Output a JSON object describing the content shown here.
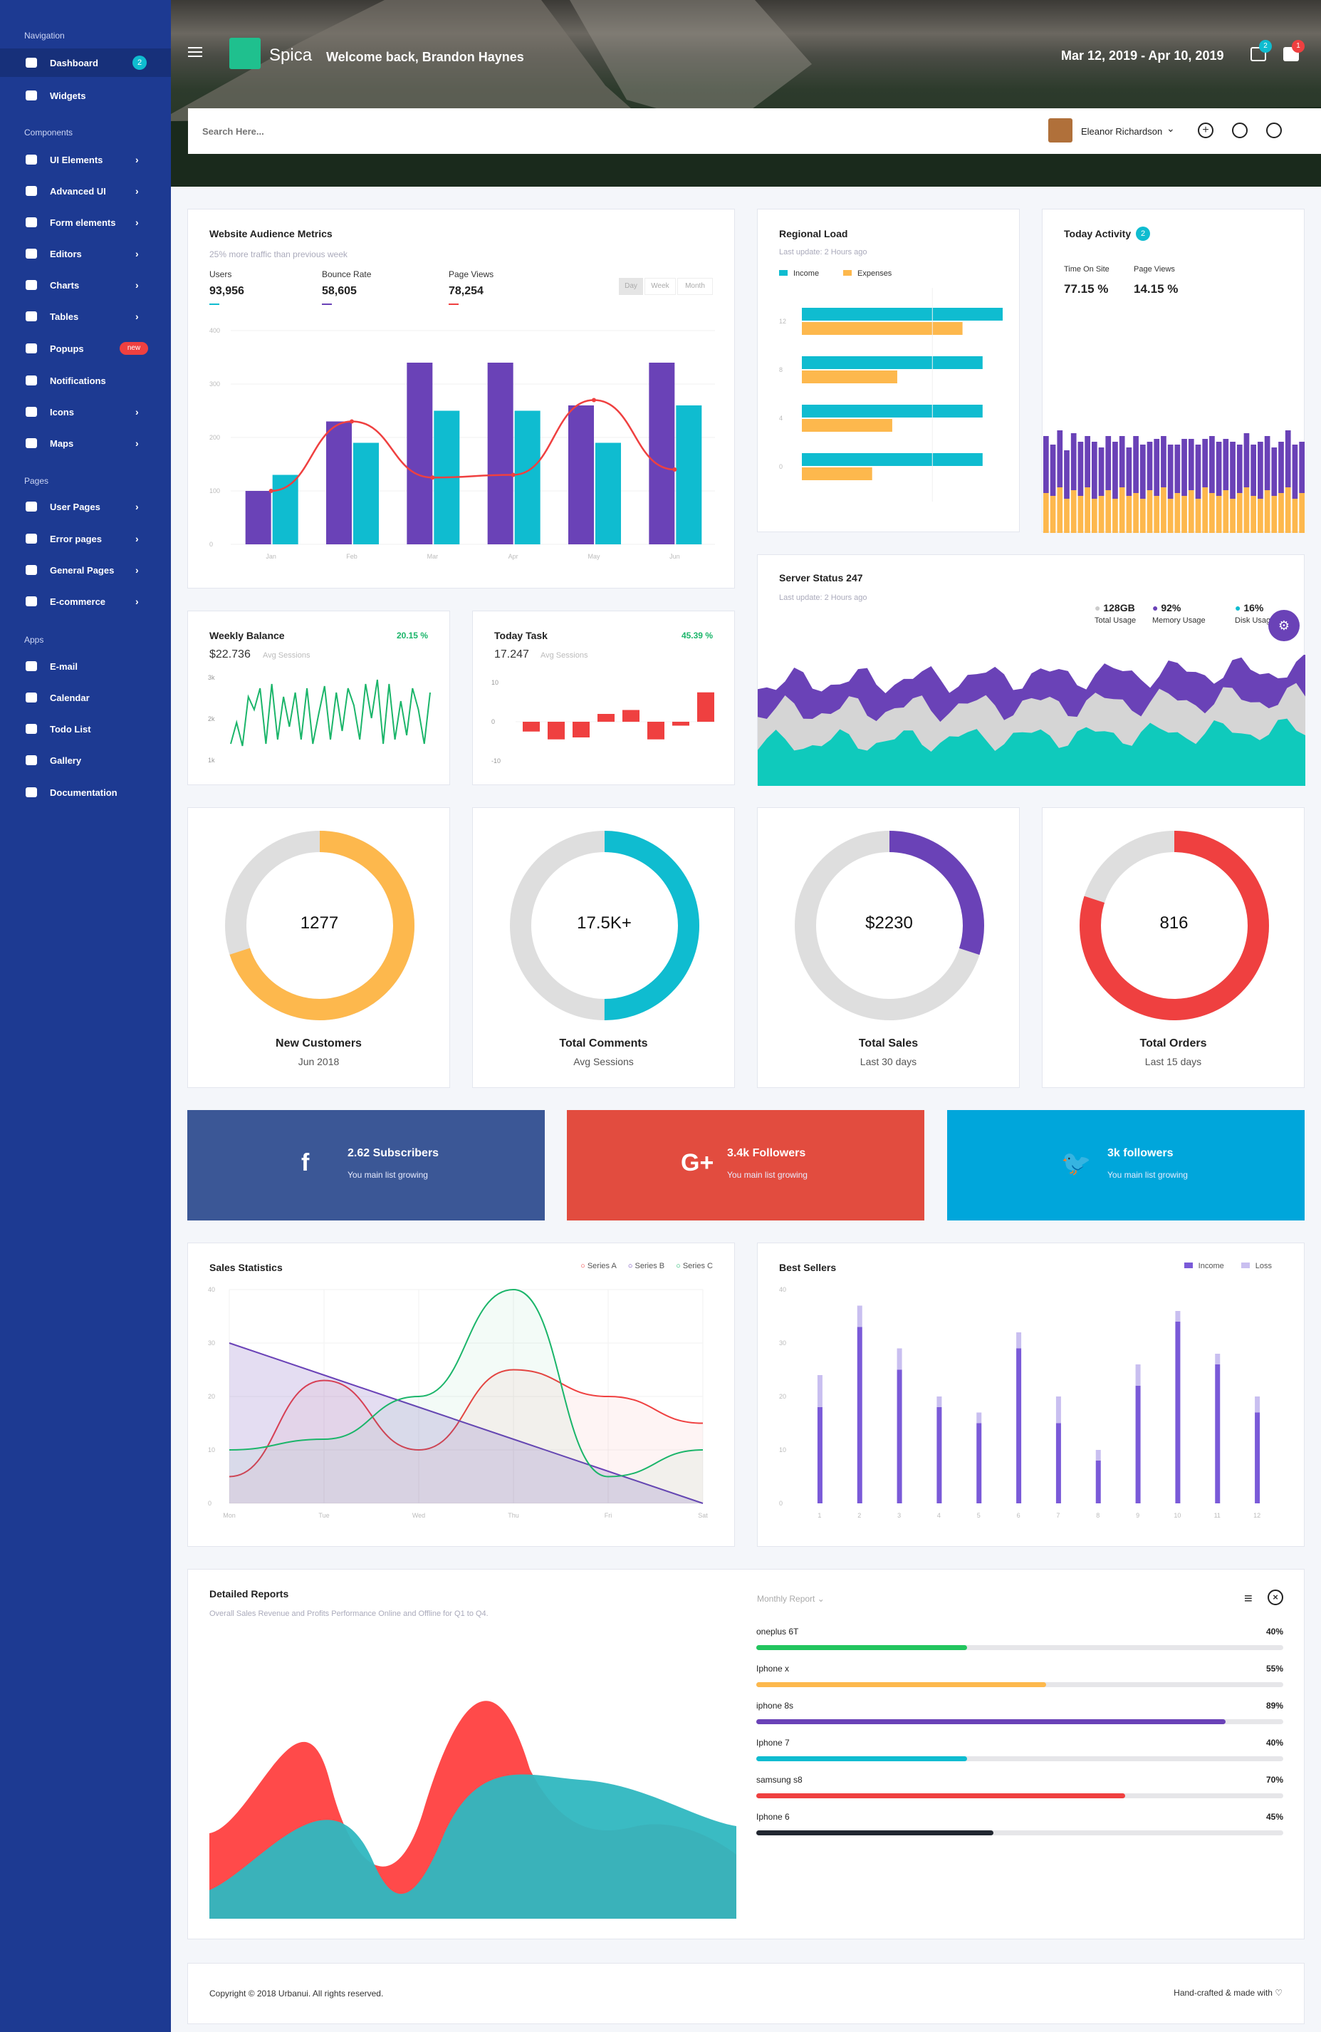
{
  "sidebar": {
    "sections": [
      "Navigation",
      "Components",
      "Pages",
      "Apps"
    ],
    "items": [
      {
        "label": "Dashboard",
        "badge": "2",
        "active": true
      },
      {
        "label": "Widgets"
      },
      {
        "label": "UI Elements",
        "chevron": true
      },
      {
        "label": "Advanced UI",
        "chevron": true
      },
      {
        "label": "Form elements",
        "chevron": true
      },
      {
        "label": "Editors",
        "chevron": true
      },
      {
        "label": "Charts",
        "chevron": true
      },
      {
        "label": "Tables",
        "chevron": true
      },
      {
        "label": "Popups",
        "tag": "new"
      },
      {
        "label": "Notifications"
      },
      {
        "label": "Icons",
        "chevron": true
      },
      {
        "label": "Maps",
        "chevron": true
      },
      {
        "label": "User Pages",
        "chevron": true
      },
      {
        "label": "Error pages",
        "chevron": true
      },
      {
        "label": "General Pages",
        "chevron": true
      },
      {
        "label": "E-commerce",
        "chevron": true
      },
      {
        "label": "E-mail"
      },
      {
        "label": "Calendar"
      },
      {
        "label": "Todo List"
      },
      {
        "label": "Gallery"
      },
      {
        "label": "Documentation"
      }
    ]
  },
  "header": {
    "brand": "Spica",
    "welcome": "Welcome back, Brandon Haynes",
    "date_range": "Mar 12, 2019 - Apr 10, 2019",
    "notif_badge_1": "2",
    "notif_badge_2": "1",
    "search_placeholder": "Search Here...",
    "user_name": "Eleanor Richardson"
  },
  "audience": {
    "title": "Website Audience Metrics",
    "subtitle": "25% more traffic than previous week",
    "stats": [
      {
        "label": "Users",
        "value": "93,956",
        "color": "#0fbcd0"
      },
      {
        "label": "Bounce Rate",
        "value": "58,605",
        "color": "#6a42b7"
      },
      {
        "label": "Page Views",
        "value": "78,254",
        "color": "#ef4040"
      }
    ],
    "tabs": [
      "Day",
      "Week",
      "Month"
    ],
    "chart_data": {
      "type": "bar",
      "categories": [
        "Jan",
        "Feb",
        "Mar",
        "Apr",
        "May",
        "Jun"
      ],
      "series": [
        {
          "values": [
            100,
            230,
            340,
            340,
            260,
            340
          ],
          "color": "#6a42b7"
        },
        {
          "values": [
            130,
            190,
            250,
            250,
            190,
            260
          ],
          "color": "#0fbcd0"
        }
      ],
      "line": {
        "values": [
          100,
          230,
          125,
          130,
          270,
          140
        ],
        "color": "#ef4040"
      },
      "yticks": [
        "0",
        "100",
        "200",
        "300",
        "400"
      ],
      "ylim": [
        0,
        400
      ]
    }
  },
  "regional": {
    "title": "Regional Load",
    "subtitle": "Last update: 2 Hours ago",
    "legend": [
      {
        "name": "Income",
        "color": "#0fbcd0"
      },
      {
        "name": "Expenses",
        "color": "#fdb84d"
      }
    ],
    "chart_data": {
      "type": "bar",
      "categories": [
        "12",
        "8",
        "4",
        "0"
      ],
      "series": [
        {
          "name": "Income",
          "values": [
            20,
            18,
            18,
            18
          ]
        },
        {
          "name": "Expenses",
          "values": [
            16,
            9.5,
            9,
            7
          ]
        }
      ],
      "xlim": [
        0,
        20
      ]
    }
  },
  "today_activity": {
    "title": "Today Activity",
    "badge": "2",
    "stats": [
      {
        "label": "Time On Site",
        "value": "77.15 %"
      },
      {
        "label": "Page Views",
        "value": "14.15 %"
      }
    ],
    "chart_data": {
      "type": "bar",
      "series": [
        {
          "name": "A",
          "values": [
            14,
            13,
            16,
            12,
            15,
            13,
            16,
            12,
            13,
            15,
            12,
            16,
            13,
            14,
            12,
            15,
            13,
            16,
            12,
            14,
            13,
            15,
            12,
            16,
            14,
            13,
            15,
            12,
            14,
            16,
            13,
            12,
            15,
            13,
            14,
            16,
            12,
            14
          ]
        },
        {
          "name": "B",
          "values": [
            20,
            18,
            20,
            17,
            20,
            19,
            18,
            20,
            17,
            19,
            20,
            18,
            17,
            20,
            19,
            17,
            20,
            18,
            19,
            17,
            20,
            18,
            19,
            17,
            20,
            19,
            18,
            20,
            17,
            19,
            18,
            20,
            19,
            17,
            18,
            20,
            19,
            18
          ]
        }
      ]
    }
  },
  "weekly_balance": {
    "title": "Weekly Balance",
    "percent": "20.15 %",
    "value": "$22.736",
    "sub": "Avg Sessions",
    "yticks": [
      "3k",
      "2k",
      "1k"
    ],
    "chart_data": {
      "type": "line",
      "values": [
        1400,
        1900,
        1350,
        2500,
        2200,
        2700,
        1400,
        2800,
        1500,
        2500,
        1800,
        2600,
        1500,
        2700,
        1400,
        2100,
        2750,
        1500,
        2600,
        1700,
        2700,
        2300,
        1500,
        2800,
        2000,
        2900,
        1400,
        2800,
        1500,
        2400,
        1600,
        2700,
        2200,
        1400,
        2600
      ]
    }
  },
  "today_task": {
    "title": "Today Task",
    "percent": "45.39 %",
    "value": "17.247",
    "sub": "Avg Sessions",
    "yticks": [
      "10",
      "0",
      "-10"
    ],
    "chart_data": {
      "type": "bar",
      "values": [
        -2.5,
        -4.5,
        -4,
        2,
        3,
        -4.5,
        -1,
        7.5
      ],
      "ylim": [
        -10,
        10
      ]
    }
  },
  "server": {
    "title": "Server Status 247",
    "subtitle": "Last update: 2 Hours ago",
    "stats": [
      {
        "value": "128GB",
        "label": "Total Usage",
        "color": "#cccccc"
      },
      {
        "value": "92%",
        "label": "Memory Usage",
        "color": "#6a42b7"
      },
      {
        "value": "16%",
        "label": "Disk Usage",
        "color": "#0fbcd0"
      }
    ]
  },
  "donuts": [
    {
      "value": "1277",
      "title": "New Customers",
      "sub": "Jun 2018",
      "color": "#fdb84d",
      "percent": 0.7
    },
    {
      "value": "17.5K+",
      "title": "Total Comments",
      "sub": "Avg Sessions",
      "color": "#0fbcd0",
      "percent": 0.5
    },
    {
      "value": "$2230",
      "title": "Total Sales",
      "sub": "Last 30 days",
      "color": "#6a42b7",
      "percent": 0.3
    },
    {
      "value": "816",
      "title": "Total Orders",
      "sub": "Last 15 days",
      "color": "#ef4040",
      "percent": 0.8
    }
  ],
  "social": [
    {
      "icon": "f",
      "title": "2.62 Subscribers",
      "sub": "You main list growing",
      "color": "#3b5796"
    },
    {
      "icon": "G+",
      "title": "3.4k Followers",
      "sub": "You main list growing",
      "color": "#e24c3f"
    },
    {
      "icon": "🐦",
      "title": "3k followers",
      "sub": "You main list growing",
      "color": "#00a6db"
    }
  ],
  "sales_stats": {
    "title": "Sales Statistics",
    "legend": [
      {
        "name": "Series A",
        "color": "#ef4040"
      },
      {
        "name": "Series B",
        "color": "#6a42b7"
      },
      {
        "name": "Series C",
        "color": "#1bb56a"
      }
    ],
    "chart_data": {
      "type": "line",
      "categories": [
        "Mon",
        "Tue",
        "Wed",
        "Thu",
        "Fri",
        "Sat"
      ],
      "series": [
        {
          "name": "Series A",
          "values": [
            5,
            23,
            10,
            25,
            20,
            15
          ]
        },
        {
          "name": "Series B",
          "values": [
            30,
            24,
            18,
            12,
            6,
            0
          ]
        },
        {
          "name": "Series C",
          "values": [
            10,
            12,
            20,
            40,
            5,
            10
          ]
        }
      ],
      "yticks": [
        "0",
        "10",
        "20",
        "30",
        "40"
      ],
      "ylim": [
        0,
        40
      ]
    }
  },
  "best_sellers": {
    "title": "Best Sellers",
    "legend": [
      {
        "name": "Income",
        "color": "#7a5ad8"
      },
      {
        "name": "Loss",
        "color": "#c9bff0"
      }
    ],
    "chart_data": {
      "type": "bar",
      "categories": [
        "1",
        "2",
        "3",
        "4",
        "5",
        "6",
        "7",
        "8",
        "9",
        "10",
        "11",
        "12"
      ],
      "series": [
        {
          "name": "Income",
          "values": [
            18,
            33,
            25,
            18,
            15,
            29,
            15,
            8,
            22,
            34,
            26,
            17
          ]
        },
        {
          "name": "Loss",
          "values": [
            6,
            4,
            4,
            2,
            2,
            3,
            5,
            2,
            4,
            2,
            2,
            3
          ]
        }
      ],
      "yticks": [
        "0",
        "10",
        "20",
        "30",
        "40"
      ],
      "ylim": [
        0,
        40
      ]
    }
  },
  "detailed": {
    "title": "Detailed Reports",
    "subtitle": "Overall Sales Revenue and Profits Performance Online and Offline for Q1 to Q4.",
    "dropdown": "Monthly Report",
    "products": [
      {
        "name": "oneplus 6T",
        "value": "40%",
        "fill": 0.4,
        "color": "#22c55e"
      },
      {
        "name": "Iphone x",
        "value": "55%",
        "fill": 0.55,
        "color": "#fdb84d"
      },
      {
        "name": "iphone 8s",
        "value": "89%",
        "fill": 0.89,
        "color": "#6a42b7"
      },
      {
        "name": "Iphone 7",
        "value": "40%",
        "fill": 0.4,
        "color": "#0fbcd0"
      },
      {
        "name": "samsung s8",
        "value": "70%",
        "fill": 0.7,
        "color": "#ef4040"
      },
      {
        "name": "Iphone 6",
        "value": "45%",
        "fill": 0.45,
        "color": "#222831"
      }
    ]
  },
  "footer": {
    "copyright": "Copyright © 2018 Urbanui. All rights reserved.",
    "made": "Hand-crafted & made with"
  }
}
